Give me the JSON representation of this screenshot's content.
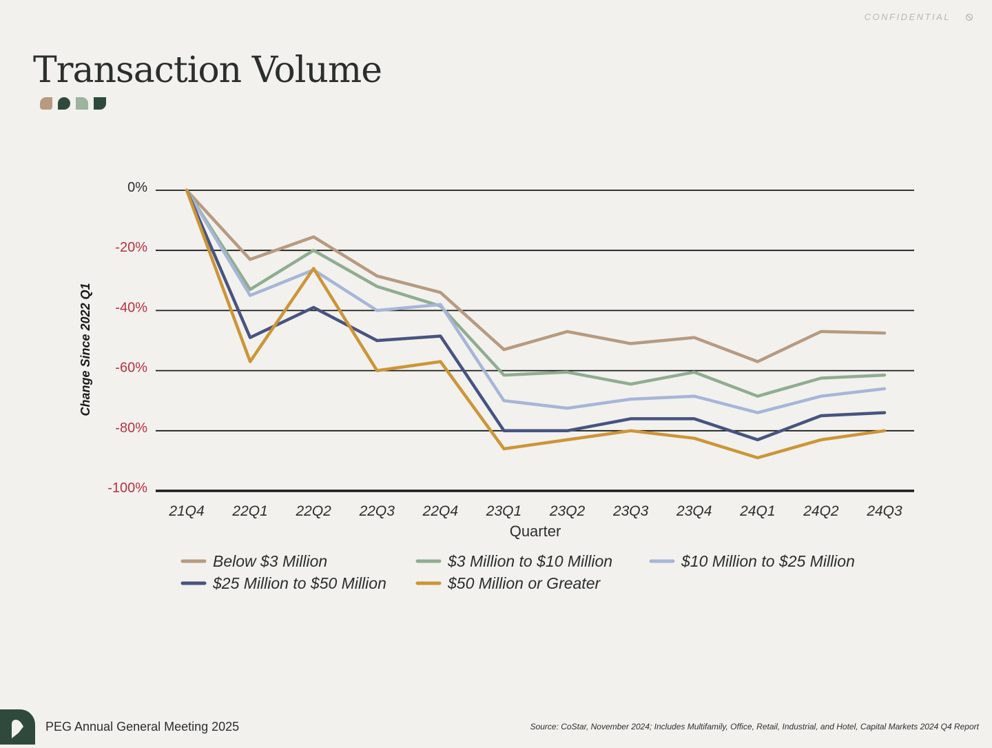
{
  "header": {
    "confidential": "CONFIDENTIAL",
    "title": "Transaction Volume",
    "icon": "block-icon"
  },
  "footer": {
    "meeting": "PEG Annual General Meeting 2025",
    "source": "Source: CoStar, November 2024; Includes Multifamily, Office, Retail, Industrial, and Hotel, Capital Markets 2024 Q4 Report",
    "logo": "peg-logo-icon"
  },
  "colors": {
    "background": "#f2f1ee",
    "brand_dark": "#2f4a3c",
    "negative_tick": "#b8323f",
    "axis": "#1a1a1a"
  },
  "chart_data": {
    "type": "line",
    "title": "",
    "xlabel": "Quarter",
    "ylabel": "Change Since 2022 Q1",
    "ylim": [
      -100,
      0
    ],
    "y_ticks": [
      0,
      -20,
      -40,
      -60,
      -80,
      -100
    ],
    "y_tick_labels": [
      "0%",
      "-20%",
      "-40%",
      "-60%",
      "-80%",
      "-100%"
    ],
    "grid": true,
    "legend_position": "bottom",
    "categories": [
      "21Q4",
      "22Q1",
      "22Q2",
      "22Q3",
      "22Q4",
      "23Q1",
      "23Q2",
      "23Q3",
      "23Q4",
      "24Q1",
      "24Q2",
      "24Q3"
    ],
    "series": [
      {
        "name": "Below $3 Million",
        "color": "#b79a80",
        "values": [
          0,
          -23,
          -15.5,
          -28.5,
          -34,
          -53,
          -47,
          -51,
          -49,
          -57,
          -47,
          -47.5
        ]
      },
      {
        "name": "$3 Million to $10 Million",
        "color": "#8fad90",
        "values": [
          0,
          -33,
          -20,
          -32,
          -38.5,
          -61.5,
          -60.5,
          -64.5,
          -60.5,
          -68.5,
          -62.5,
          -61.5
        ]
      },
      {
        "name": "$10 Million to $25 Million",
        "color": "#a6b6d8",
        "values": [
          0,
          -35,
          -26.5,
          -40,
          -38,
          -70,
          -72.5,
          -69.5,
          -68.5,
          -74,
          -68.5,
          -66
        ]
      },
      {
        "name": "$25 Million to $50 Million",
        "color": "#475480",
        "values": [
          0,
          -49,
          -39,
          -50,
          -48.5,
          -80,
          -80,
          -76,
          -76,
          -83,
          -75,
          -74
        ]
      },
      {
        "name": "$50 Million or Greater",
        "color": "#cc9536",
        "values": [
          0,
          -57,
          -26,
          -60,
          -57,
          -86,
          -83,
          -80,
          -82.5,
          -89,
          -83,
          -80
        ]
      }
    ]
  }
}
